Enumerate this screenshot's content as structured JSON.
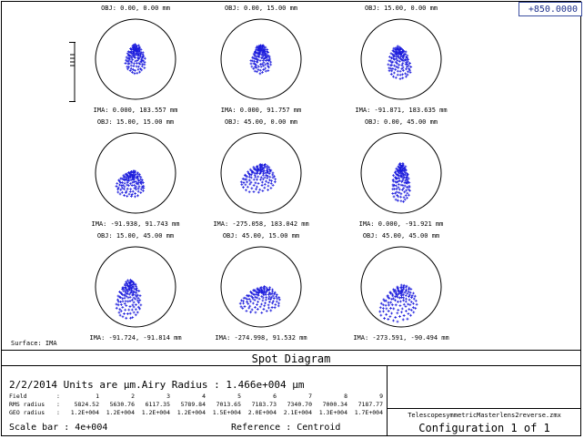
{
  "zoom_value": "+850.0000",
  "spots": [
    {
      "obj": "OBJ: 0.00, 0.00 mm",
      "ima": "IMA: 0.000, 183.557 mm"
    },
    {
      "obj": "OBJ: 0.00, 15.00 mm",
      "ima": "IMA: 0.000, 91.757 mm"
    },
    {
      "obj": "OBJ: 15.00, 0.00 mm",
      "ima": "IMA: -91.871, 183.635 mm"
    },
    {
      "obj": "OBJ: 15.00, 15.00 mm",
      "ima": "IMA: -91.938, 91.743 mm"
    },
    {
      "obj": "OBJ: 45.00, 0.00 mm",
      "ima": "IMA: -275.058, 183.042 mm"
    },
    {
      "obj": "OBJ: 0.00, 45.00 mm",
      "ima": "IMA: 0.000, -91.921 mm"
    },
    {
      "obj": "OBJ: 15.00, 45.00 mm",
      "ima": "IMA: -91.724, -91.814 mm"
    },
    {
      "obj": "OBJ: 45.00, 15.00 mm",
      "ima": "IMA: -274.998, 91.532 mm"
    },
    {
      "obj": "OBJ: 45.00, 45.00 mm",
      "ima": "IMA: -273.591, -90.494 mm"
    }
  ],
  "surface_label": "Surface: IMA",
  "title": "Spot Diagram",
  "info": {
    "date_line": "2/2/2014  Units are µm.Airy Radius : 1.466e+004 µm",
    "field_label": "Field",
    "rms_label": "RMS radius",
    "geo_label": "GEO radius",
    "fields": [
      "1",
      "2",
      "3",
      "4",
      "5",
      "6",
      "7",
      "8",
      "9"
    ],
    "rms": [
      "5824.52",
      "5630.76",
      "6117.35",
      "5789.84",
      "7013.65",
      "7183.73",
      "7340.70",
      "7000.34",
      "7187.77"
    ],
    "geo": [
      "1.2E+004",
      "1.2E+004",
      "1.2E+004",
      "1.2E+004",
      "1.5E+004",
      "2.0E+004",
      "2.1E+004",
      "1.3E+004",
      "1.7E+004"
    ],
    "scale_bar_label": "Scale bar",
    "scale_bar_value": "4e+004",
    "reference_label": "Reference",
    "reference_value": "Centroid"
  },
  "file_name": "TelescopesymmetricMasterlens2reverse.zmx",
  "configuration": "Configuration 1 of 1",
  "colors": {
    "spot": "#1a1adc",
    "zoom_text": "#1c2f8c"
  }
}
